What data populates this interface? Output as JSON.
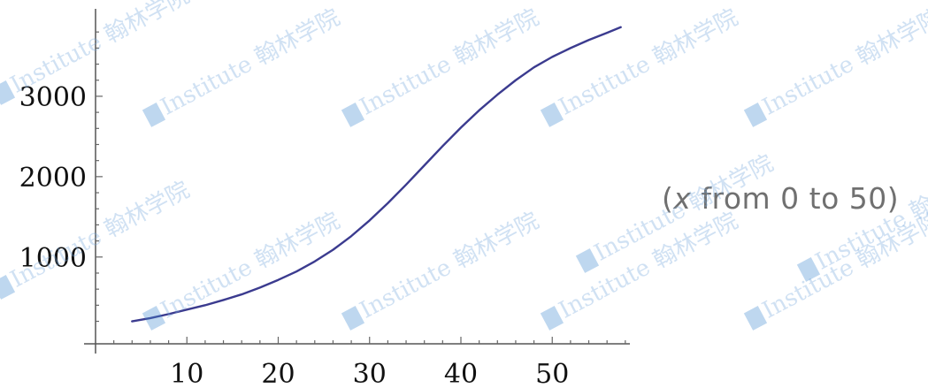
{
  "chart_data": {
    "type": "line",
    "title": "",
    "xlabel": "",
    "ylabel": "",
    "annotation_prefix": "(",
    "annotation_var": "x",
    "annotation_rest": " from 0 to 50)",
    "xlim": [
      0,
      58.5
    ],
    "ylim": [
      -80,
      4000
    ],
    "x_ticks": [
      10,
      20,
      30,
      40,
      50
    ],
    "y_ticks": [
      1000,
      2000,
      3000
    ],
    "x_tick_labels": [
      "10",
      "20",
      "30",
      "40",
      "50"
    ],
    "y_tick_labels": [
      "1000",
      "2000",
      "3000"
    ],
    "grid": false,
    "series": [
      {
        "color": "#3b3b8f",
        "x": [
          4,
          6,
          8,
          10,
          12,
          14,
          16,
          18,
          20,
          22,
          24,
          26,
          28,
          30,
          32,
          34,
          36,
          38,
          40,
          42,
          44,
          46,
          48,
          50,
          52,
          54,
          56,
          57.5
        ],
        "y": [
          200,
          240,
          290,
          345,
          400,
          465,
          535,
          620,
          715,
          820,
          945,
          1090,
          1260,
          1455,
          1670,
          1900,
          2140,
          2380,
          2610,
          2825,
          3020,
          3200,
          3360,
          3490,
          3600,
          3700,
          3790,
          3860
        ]
      }
    ]
  },
  "watermarks": [
    "Institute 翰林学院"
  ]
}
